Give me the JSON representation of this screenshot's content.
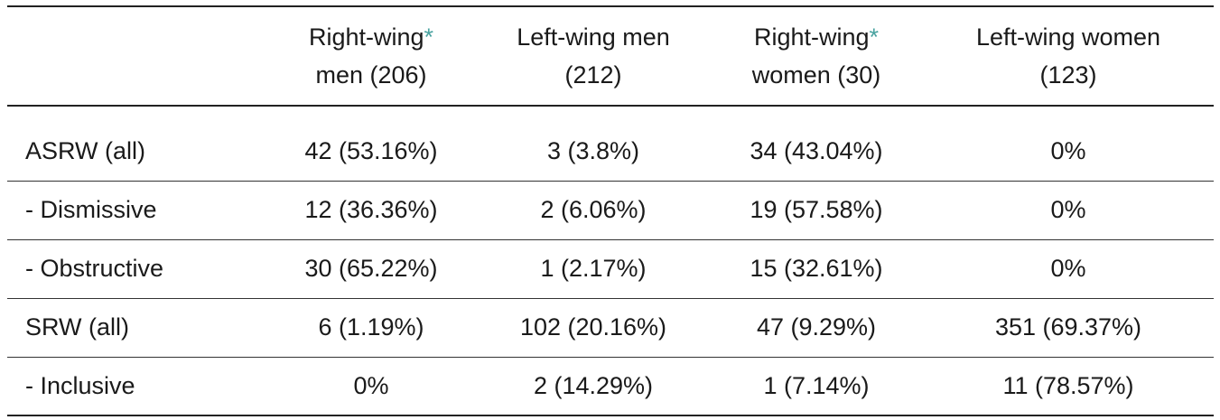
{
  "table": {
    "columns": [
      {
        "line1": "Right-wing",
        "marker": "*",
        "line2": "men (206)"
      },
      {
        "line1": "Left-wing men",
        "marker": "",
        "line2": "(212)"
      },
      {
        "line1": "Right-wing",
        "marker": "*",
        "line2": "women (30)"
      },
      {
        "line1": "Left-wing women",
        "marker": "",
        "line2": "(123)"
      }
    ],
    "rows": [
      {
        "label": "ASRW (all)",
        "cells": [
          "42 (53.16%)",
          "3 (3.8%)",
          "34 (43.04%)",
          "0%"
        ]
      },
      {
        "label": "- Dismissive",
        "cells": [
          "12 (36.36%)",
          "2 (6.06%)",
          "19 (57.58%)",
          "0%"
        ]
      },
      {
        "label": "- Obstructive",
        "cells": [
          "30 (65.22%)",
          "1 (2.17%)",
          "15 (32.61%)",
          "0%"
        ]
      },
      {
        "label": "SRW (all)",
        "cells": [
          "6 (1.19%)",
          "102 (20.16%)",
          "47 (9.29%)",
          "351 (69.37%)"
        ]
      },
      {
        "label": "- Inclusive",
        "cells": [
          "0%",
          "2 (14.29%)",
          "1 (7.14%)",
          "11 (78.57%)"
        ]
      }
    ]
  },
  "colors": {
    "asterisk": "#4aa3a0",
    "text": "#1a1a1a",
    "rule": "#222222"
  }
}
